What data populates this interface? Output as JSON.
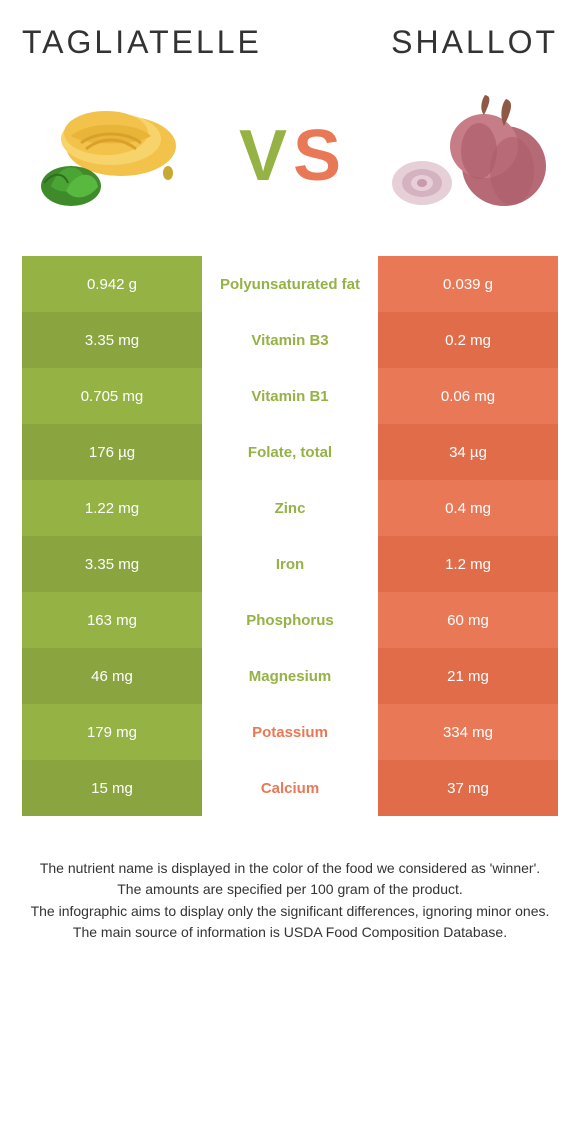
{
  "header": {
    "left_title": "TAGLIATELLE",
    "right_title": "SHALLOT",
    "vs_left": "V",
    "vs_right": "S"
  },
  "colors": {
    "left": "#95b245",
    "right": "#e97856",
    "left_alt": "#8aa53f",
    "right_alt": "#e06c4a"
  },
  "rows": [
    {
      "left": "0.942 g",
      "label": "Polyunsaturated fat",
      "right": "0.039 g",
      "winner": "left"
    },
    {
      "left": "3.35 mg",
      "label": "Vitamin B3",
      "right": "0.2 mg",
      "winner": "left"
    },
    {
      "left": "0.705 mg",
      "label": "Vitamin B1",
      "right": "0.06 mg",
      "winner": "left"
    },
    {
      "left": "176 µg",
      "label": "Folate, total",
      "right": "34 µg",
      "winner": "left"
    },
    {
      "left": "1.22 mg",
      "label": "Zinc",
      "right": "0.4 mg",
      "winner": "left"
    },
    {
      "left": "3.35 mg",
      "label": "Iron",
      "right": "1.2 mg",
      "winner": "left"
    },
    {
      "left": "163 mg",
      "label": "Phosphorus",
      "right": "60 mg",
      "winner": "left"
    },
    {
      "left": "46 mg",
      "label": "Magnesium",
      "right": "21 mg",
      "winner": "left"
    },
    {
      "left": "179 mg",
      "label": "Potassium",
      "right": "334 mg",
      "winner": "right"
    },
    {
      "left": "15 mg",
      "label": "Calcium",
      "right": "37 mg",
      "winner": "right"
    }
  ],
  "footer": {
    "line1": "The nutrient name is displayed in the color of the food we considered as 'winner'.",
    "line2": "The amounts are specified per 100 gram of the product.",
    "line3": "The infographic aims to display only the significant differences, ignoring minor ones.",
    "line4": "The main source of information is USDA Food Composition Database."
  }
}
